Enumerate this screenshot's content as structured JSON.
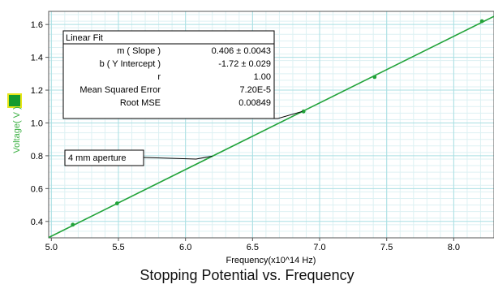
{
  "colors": {
    "series": "#22a33a",
    "grid_major": "#a9dfe3",
    "grid_minor": "#ddf1f3",
    "ylabel": "#3cb043",
    "legend_swatch_fill": "#149b2e",
    "legend_swatch_border": "#e6e619"
  },
  "caption": "Stopping Potential vs. Frequency",
  "chart_data": {
    "type": "scatter",
    "xlabel": "Frequency(x10^14 Hz)",
    "ylabel": "Voltage( V )",
    "xlim": [
      4.98,
      8.3
    ],
    "ylim": [
      0.3,
      1.68
    ],
    "xticks": [
      "5.0",
      "5.5",
      "6.0",
      "6.5",
      "7.0",
      "7.5",
      "8.0"
    ],
    "yticks": [
      "0.4",
      "0.6",
      "0.8",
      "1.0",
      "1.2",
      "1.4",
      "1.6"
    ],
    "x": [
      5.16,
      5.49,
      6.88,
      7.41,
      8.21
    ],
    "y": [
      0.38,
      0.51,
      1.07,
      1.28,
      1.62
    ],
    "fit_line": {
      "slope": 0.406,
      "intercept": -1.72
    },
    "grid": true,
    "legend": "left",
    "annotation": {
      "text": "4 mm aperture",
      "x": 6.2,
      "y": 0.798
    },
    "fit_box": {
      "title": "Linear Fit",
      "anchor": {
        "x": 6.87,
        "y": 1.07
      },
      "rows": [
        {
          "label": "m ( Slope )",
          "value": "0.406 ± 0.0043"
        },
        {
          "label": "b ( Y Intercept )",
          "value": "-1.72 ±   0.029"
        },
        {
          "label": "r",
          "value": "1.00"
        },
        {
          "label": "Mean Squared Error",
          "value": "7.20E-5"
        },
        {
          "label": "Root MSE",
          "value": "0.00849"
        }
      ]
    }
  }
}
